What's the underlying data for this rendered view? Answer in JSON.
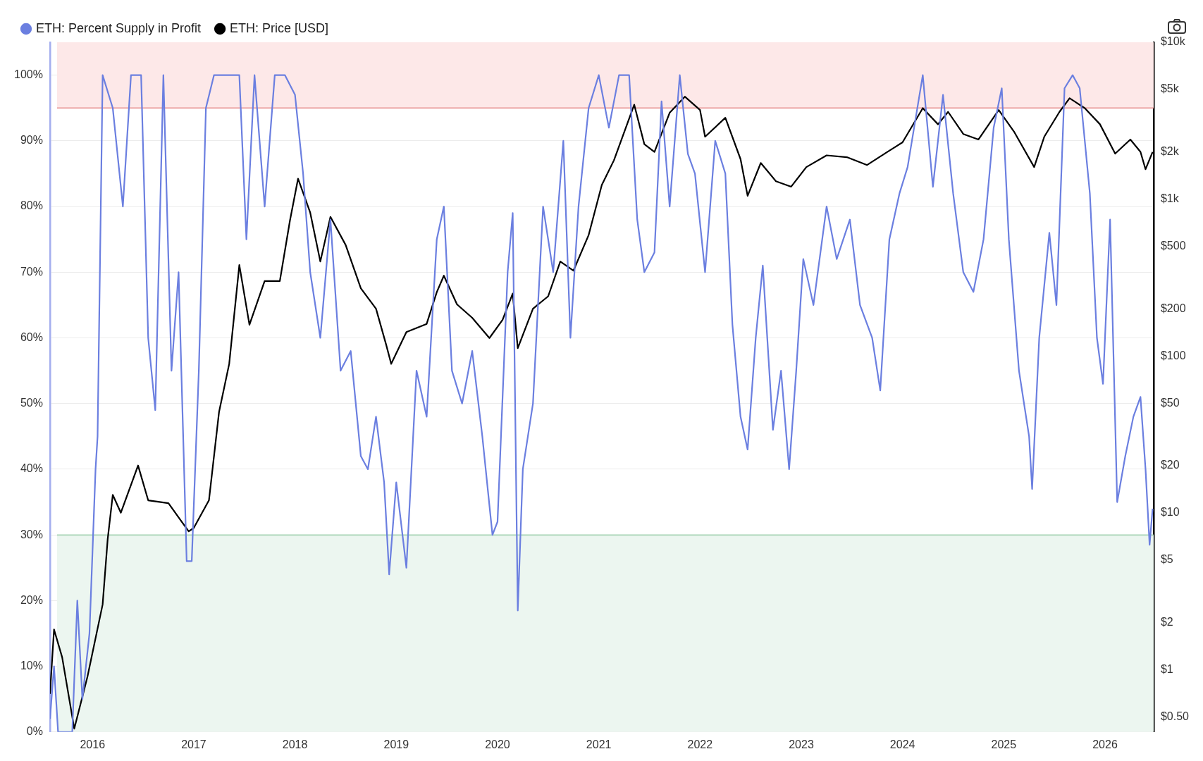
{
  "chart_data": {
    "type": "line",
    "legend": "top left",
    "grid": "y",
    "log": "y2",
    "marker": "none",
    "xlim": [
      2015.58,
      2026.48
    ],
    "xticks": [
      2016,
      2017,
      2018,
      2019,
      2020,
      2021,
      2022,
      2023,
      2024,
      2025,
      2026
    ],
    "ylim": [
      0,
      105
    ],
    "yticks": [
      {
        "value": 0,
        "label": "0%"
      },
      {
        "value": 10,
        "label": "10%"
      },
      {
        "value": 20,
        "label": "20%"
      },
      {
        "value": 30,
        "label": "30%"
      },
      {
        "value": 40,
        "label": "40%"
      },
      {
        "value": 50,
        "label": "50%"
      },
      {
        "value": 60,
        "label": "60%"
      },
      {
        "value": 70,
        "label": "70%"
      },
      {
        "value": 80,
        "label": "80%"
      },
      {
        "value": 90,
        "label": "90%"
      },
      {
        "value": 100,
        "label": "100%"
      }
    ],
    "y2lim": [
      0.4,
      10000
    ],
    "y2ticks": [
      {
        "value": 0.5,
        "label": "$0.50"
      },
      {
        "value": 1,
        "label": "$1"
      },
      {
        "value": 2,
        "label": "$2"
      },
      {
        "value": 5,
        "label": "$5"
      },
      {
        "value": 10,
        "label": "$10"
      },
      {
        "value": 20,
        "label": "$20"
      },
      {
        "value": 50,
        "label": "$50"
      },
      {
        "value": 100,
        "label": "$100"
      },
      {
        "value": 200,
        "label": "$200"
      },
      {
        "value": 500,
        "label": "$500"
      },
      {
        "value": 1000,
        "label": "$1k"
      },
      {
        "value": 2000,
        "label": "$2k"
      },
      {
        "value": 5000,
        "label": "$5k"
      },
      {
        "value": 10000,
        "label": "$10k"
      }
    ],
    "bands": [
      {
        "axis": "y",
        "from": 95,
        "to": 105,
        "color": "#fde8e8"
      },
      {
        "axis": "y",
        "from": 0,
        "to": 30,
        "color": "#ecf6f0"
      }
    ],
    "ref_lines": [
      {
        "axis": "y",
        "value": 95,
        "color": "#e89090"
      },
      {
        "axis": "y",
        "value": 30,
        "color": "#9fd0ad"
      }
    ],
    "series": [
      {
        "name": "ETH: Percent Supply in Profit",
        "color": "#6b7fe0",
        "axis": "y",
        "x": [
          2015.58,
          2015.62,
          2015.66,
          2015.8,
          2015.85,
          2015.9,
          2015.97,
          2016.03,
          2016.05,
          2016.1,
          2016.2,
          2016.3,
          2016.38,
          2016.48,
          2016.55,
          2016.62,
          2016.7,
          2016.78,
          2016.85,
          2016.93,
          2016.98,
          2017.05,
          2017.12,
          2017.2,
          2017.33,
          2017.45,
          2017.52,
          2017.6,
          2017.7,
          2017.8,
          2017.9,
          2018.0,
          2018.08,
          2018.15,
          2018.25,
          2018.35,
          2018.45,
          2018.55,
          2018.65,
          2018.72,
          2018.8,
          2018.88,
          2018.93,
          2019.0,
          2019.1,
          2019.2,
          2019.3,
          2019.4,
          2019.47,
          2019.55,
          2019.65,
          2019.75,
          2019.85,
          2019.95,
          2020.0,
          2020.1,
          2020.15,
          2020.2,
          2020.25,
          2020.35,
          2020.45,
          2020.55,
          2020.65,
          2020.72,
          2020.8,
          2020.9,
          2021.0,
          2021.1,
          2021.2,
          2021.3,
          2021.38,
          2021.45,
          2021.55,
          2021.62,
          2021.7,
          2021.8,
          2021.88,
          2021.95,
          2022.05,
          2022.15,
          2022.25,
          2022.32,
          2022.4,
          2022.47,
          2022.55,
          2022.62,
          2022.72,
          2022.8,
          2022.88,
          2022.95,
          2023.02,
          2023.12,
          2023.25,
          2023.35,
          2023.48,
          2023.58,
          2023.7,
          2023.78,
          2023.87,
          2023.97,
          2024.05,
          2024.2,
          2024.3,
          2024.4,
          2024.5,
          2024.6,
          2024.7,
          2024.8,
          2024.9,
          2024.98,
          2025.05,
          2025.15,
          2025.25,
          2025.28,
          2025.35,
          2025.45,
          2025.52,
          2025.6,
          2025.68,
          2025.75,
          2025.85,
          2025.92,
          2025.98,
          2026.05,
          2026.12,
          2026.2,
          2026.28,
          2026.35,
          2026.4,
          2026.44,
          2026.47
        ],
        "values": [
          2,
          10,
          0,
          0,
          20,
          5,
          15,
          40,
          45,
          100,
          95,
          80,
          100,
          100,
          60,
          49,
          100,
          55,
          70,
          26,
          26,
          55,
          95,
          100,
          100,
          100,
          75,
          100,
          80,
          100,
          100,
          97,
          85,
          70,
          60,
          78,
          55,
          58,
          42,
          40,
          48,
          38,
          24,
          38,
          25,
          55,
          48,
          75,
          80,
          55,
          50,
          58,
          45,
          30,
          32,
          70,
          79,
          18.5,
          40,
          50,
          80,
          70,
          90,
          60,
          80,
          95,
          100,
          92,
          100,
          100,
          78,
          70,
          73,
          96,
          80,
          100,
          88,
          85,
          70,
          90,
          85,
          62,
          48,
          43,
          60,
          71,
          46,
          55,
          40,
          55,
          72,
          65,
          80,
          72,
          78,
          65,
          60,
          52,
          75,
          82,
          86,
          100,
          83,
          97,
          82,
          70,
          67,
          75,
          92,
          98,
          75,
          55,
          45,
          37,
          60,
          76,
          65,
          98,
          100,
          98,
          82,
          60,
          53,
          78,
          35,
          42,
          48,
          51,
          40,
          28.5,
          34
        ]
      },
      {
        "name": "ETH: Price [USD]",
        "color": "#000000",
        "axis": "y2",
        "x": [
          2015.58,
          2015.62,
          2015.7,
          2015.82,
          2015.95,
          2016.1,
          2016.15,
          2016.2,
          2016.28,
          2016.45,
          2016.55,
          2016.75,
          2016.95,
          2017.0,
          2017.15,
          2017.25,
          2017.35,
          2017.45,
          2017.55,
          2017.7,
          2017.85,
          2017.95,
          2018.03,
          2018.15,
          2018.25,
          2018.35,
          2018.5,
          2018.65,
          2018.8,
          2018.9,
          2018.95,
          2019.1,
          2019.3,
          2019.4,
          2019.47,
          2019.6,
          2019.75,
          2019.92,
          2020.05,
          2020.15,
          2020.2,
          2020.35,
          2020.5,
          2020.62,
          2020.75,
          2020.9,
          2021.03,
          2021.15,
          2021.35,
          2021.45,
          2021.55,
          2021.7,
          2021.85,
          2022.0,
          2022.05,
          2022.25,
          2022.4,
          2022.47,
          2022.6,
          2022.75,
          2022.9,
          2023.05,
          2023.25,
          2023.45,
          2023.65,
          2023.85,
          2024.0,
          2024.2,
          2024.35,
          2024.45,
          2024.6,
          2024.75,
          2024.95,
          2025.1,
          2025.3,
          2025.4,
          2025.55,
          2025.65,
          2025.8,
          2025.95,
          2026.1,
          2026.25,
          2026.35,
          2026.4,
          2026.47
        ],
        "values": [
          0.7,
          1.8,
          1.2,
          0.42,
          0.9,
          2.6,
          6.8,
          13,
          10,
          20,
          12,
          11.5,
          7.6,
          8,
          12,
          44,
          89,
          380,
          158,
          300,
          300,
          730,
          1350,
          820,
          400,
          770,
          510,
          270,
          200,
          118,
          89,
          142,
          160,
          255,
          325,
          213,
          175,
          130,
          170,
          250,
          112,
          200,
          240,
          400,
          350,
          590,
          1230,
          1770,
          4000,
          2240,
          2000,
          3550,
          4500,
          3700,
          2500,
          3300,
          1800,
          1050,
          1700,
          1300,
          1200,
          1600,
          1900,
          1850,
          1650,
          2000,
          2300,
          3800,
          3000,
          3600,
          2600,
          2400,
          3700,
          2700,
          1600,
          2500,
          3600,
          4400,
          3800,
          3000,
          1950,
          2400,
          2000,
          1550,
          2000
        ]
      }
    ]
  }
}
